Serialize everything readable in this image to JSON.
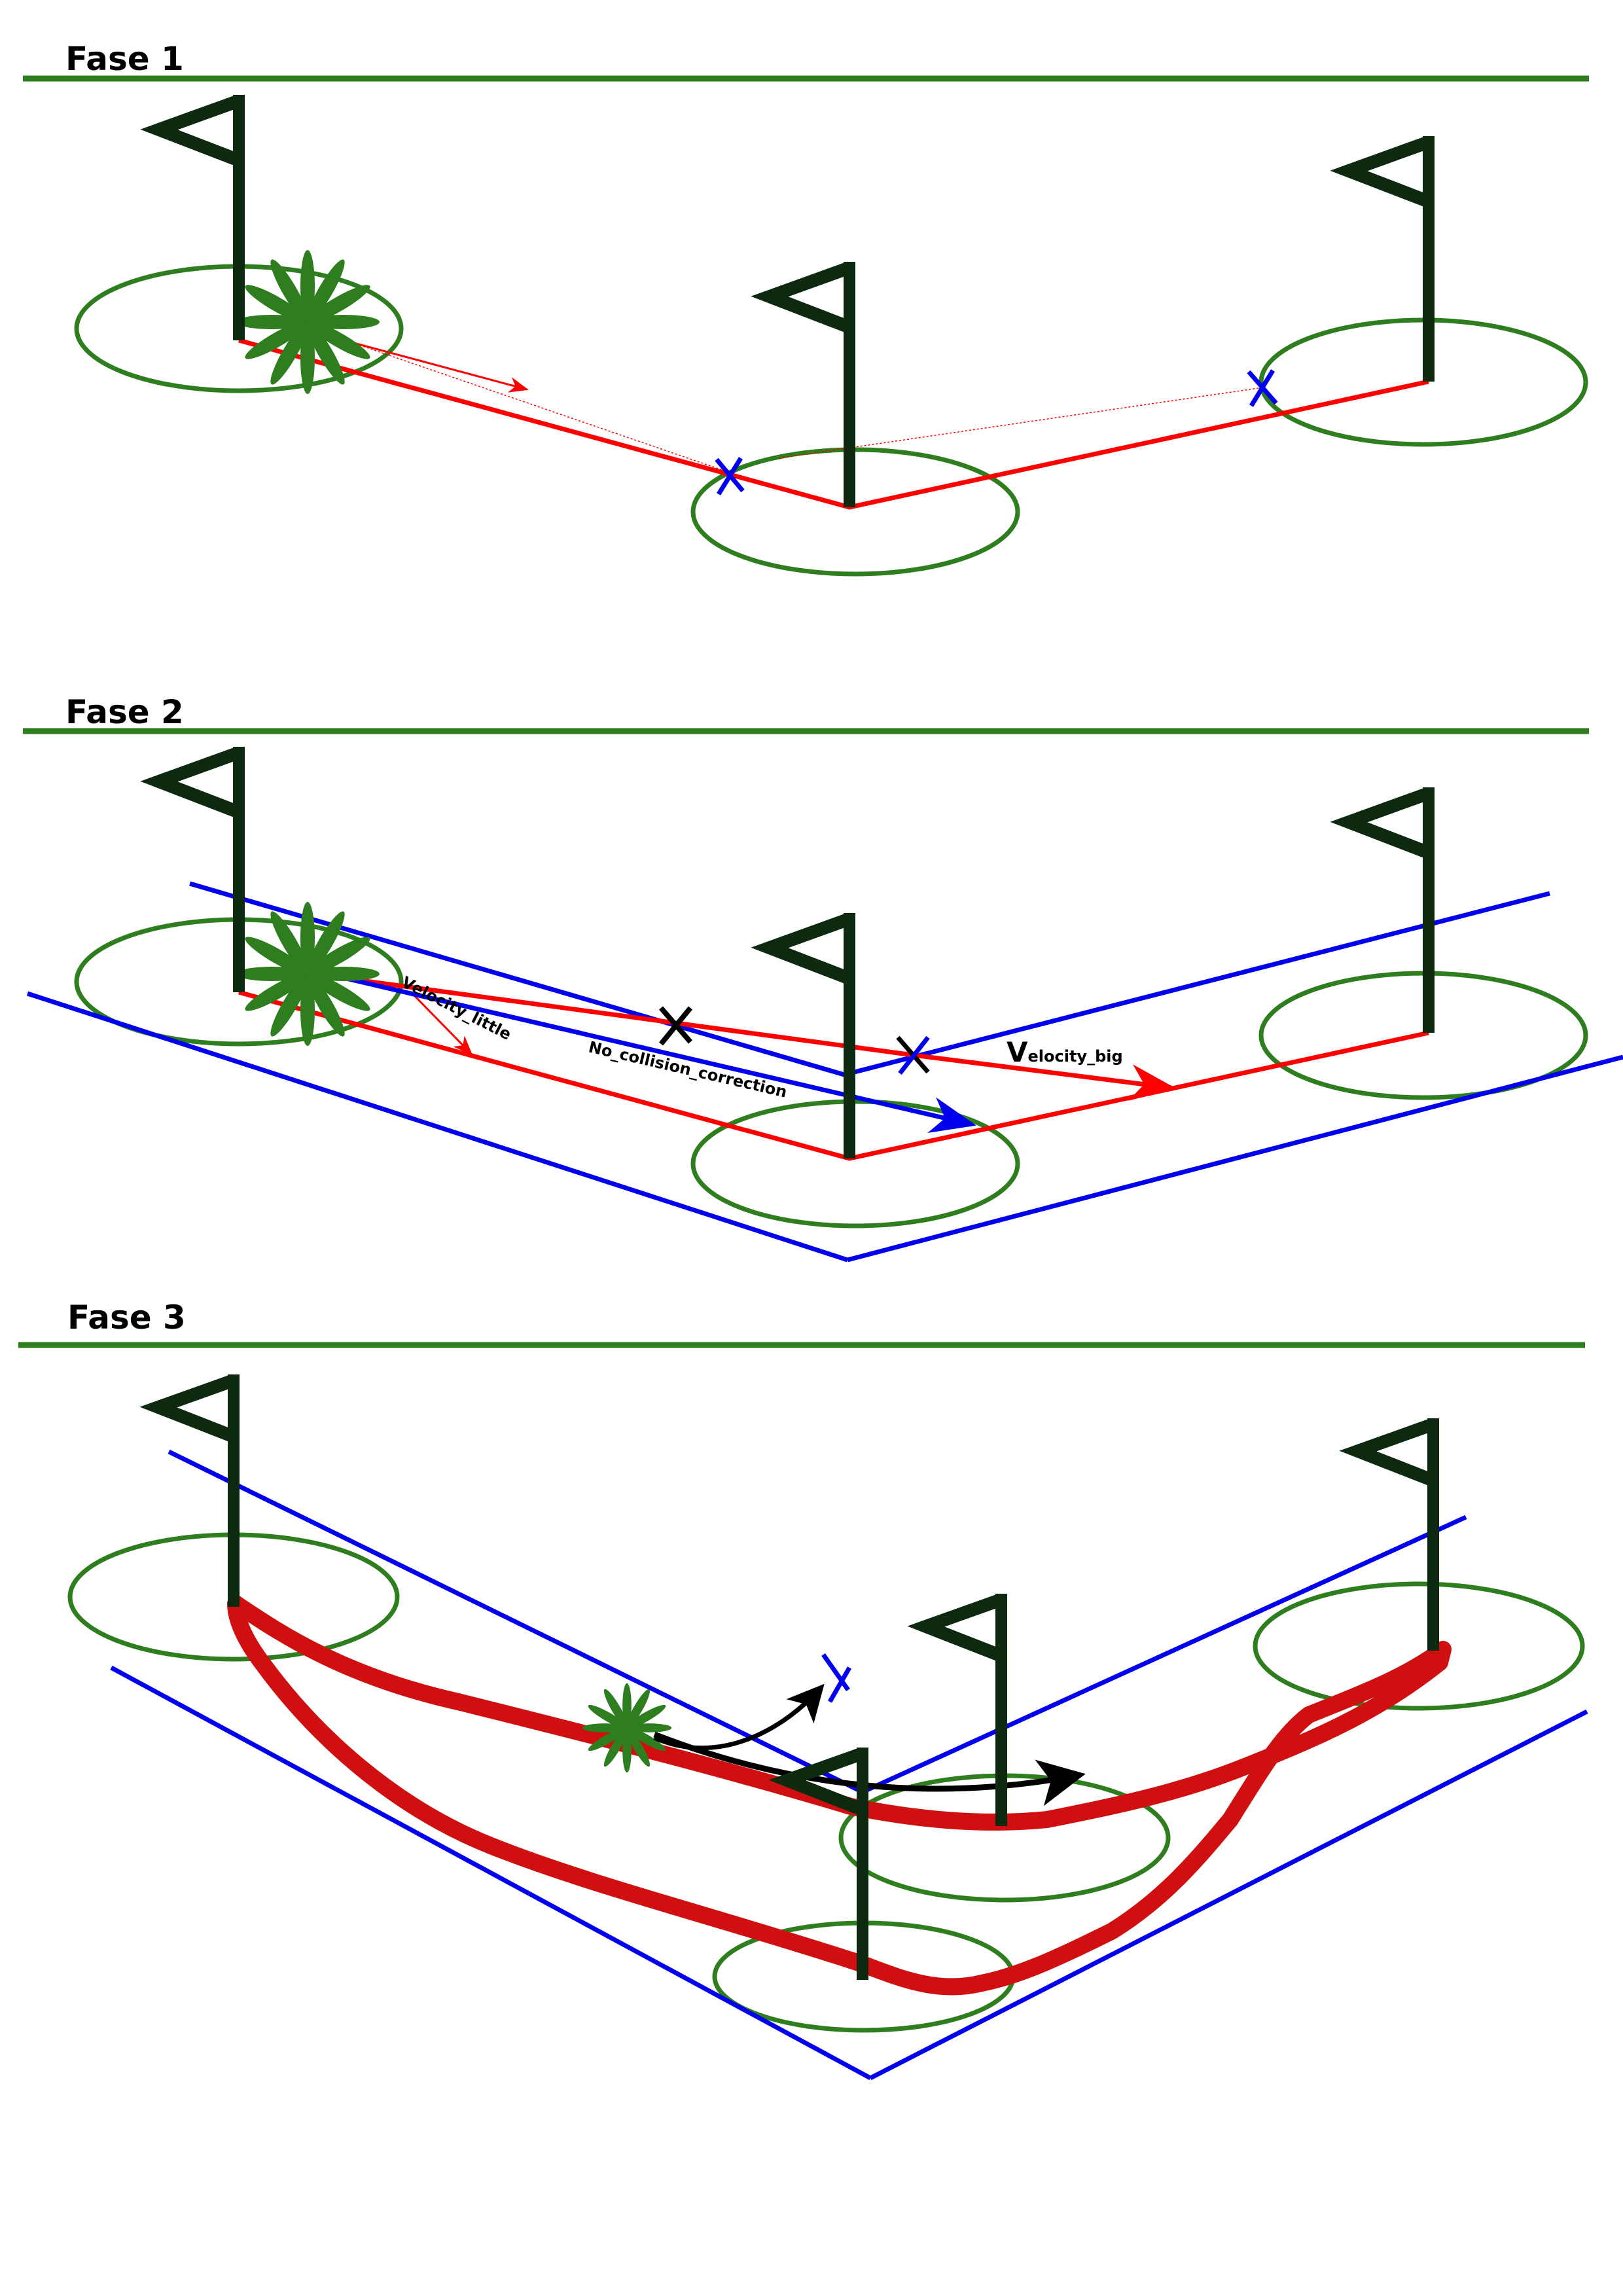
{
  "phases": [
    {
      "title": "Fase 1"
    },
    {
      "title": "Fase 2"
    },
    {
      "title": "Fase 3"
    }
  ],
  "labels": {
    "velocity_little": "Velocity_little",
    "no_collision_correction": "No_collision_correction",
    "velocity_big_initial": "V",
    "velocity_big_rest": "elocity_big"
  },
  "colors": {
    "separator": "#2e7d1e",
    "flag": "#0d2a10",
    "target_zone": "#2e7d1e",
    "path": "#ff0000",
    "blue": "#0000ee",
    "agent": "#2e7d1e",
    "marker_black": "#000000",
    "fase3_path": "#d01010"
  }
}
